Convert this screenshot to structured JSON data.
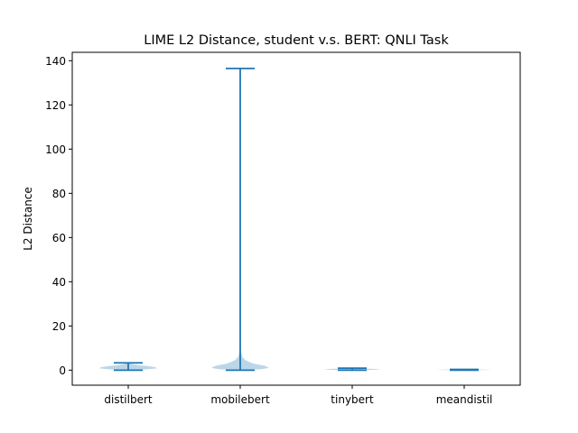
{
  "chart_data": {
    "type": "violin",
    "title": "LIME L2 Distance, student v.s. BERT: QNLI Task",
    "xlabel": "",
    "ylabel": "L2 Distance",
    "categories": [
      "distilbert",
      "mobilebert",
      "tinybert",
      "meandistil"
    ],
    "ylim": [
      -6.8,
      143.8
    ],
    "yticks": [
      0,
      20,
      40,
      60,
      80,
      100,
      120,
      140
    ],
    "grid": false,
    "series": [
      {
        "category": "distilbert",
        "min": 0.0,
        "max": 3.3,
        "density": [
          [
            0.0,
            0.0
          ],
          [
            0.3,
            0.55
          ],
          [
            0.8,
            1.0
          ],
          [
            1.3,
            0.95
          ],
          [
            1.8,
            0.7
          ],
          [
            2.3,
            0.35
          ],
          [
            2.8,
            0.12
          ],
          [
            3.3,
            0.0
          ]
        ]
      },
      {
        "category": "mobilebert",
        "min": 0.0,
        "max": 136.5,
        "density": [
          [
            0.0,
            0.0
          ],
          [
            0.4,
            0.7
          ],
          [
            1.0,
            1.0
          ],
          [
            2.0,
            0.85
          ],
          [
            3.0,
            0.45
          ],
          [
            4.5,
            0.18
          ],
          [
            6.0,
            0.07
          ],
          [
            8.0,
            0.03
          ],
          [
            10.0,
            0.015
          ],
          [
            14.0,
            0.005
          ],
          [
            20.0,
            0.0
          ]
        ]
      },
      {
        "category": "tinybert",
        "min": 0.0,
        "max": 0.9,
        "density": [
          [
            0.0,
            0.0
          ],
          [
            0.15,
            0.7
          ],
          [
            0.35,
            1.0
          ],
          [
            0.55,
            0.8
          ],
          [
            0.75,
            0.3
          ],
          [
            0.9,
            0.0
          ]
        ]
      },
      {
        "category": "meandistil",
        "min": 0.0,
        "max": 0.35,
        "density": [
          [
            0.0,
            0.0
          ],
          [
            0.1,
            0.8
          ],
          [
            0.2,
            1.0
          ],
          [
            0.3,
            0.5
          ],
          [
            0.35,
            0.0
          ]
        ]
      }
    ],
    "colors": {
      "body": "#1f77b4",
      "body_alpha": 0.3,
      "lines": "#1f77b4"
    }
  }
}
